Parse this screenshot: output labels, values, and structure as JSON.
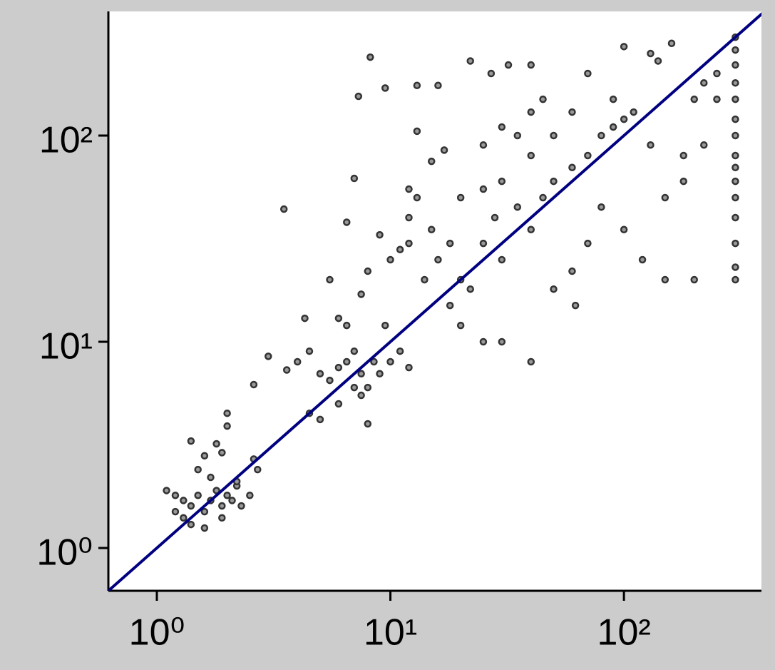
{
  "chart_data": {
    "type": "scatter",
    "xscale": "log",
    "yscale": "log",
    "xlim": [
      0.62,
      388
    ],
    "ylim": [
      0.62,
      400
    ],
    "xticks": [
      {
        "value": 1,
        "label": "10⁰"
      },
      {
        "value": 10,
        "label": "10¹"
      },
      {
        "value": 100,
        "label": "10²"
      }
    ],
    "yticks": [
      {
        "value": 1,
        "label": "10⁰"
      },
      {
        "value": 10,
        "label": "10¹"
      },
      {
        "value": 100,
        "label": "10²"
      }
    ],
    "marker_color": "#333333",
    "line_color": "#000080",
    "line": {
      "x": [
        0.62,
        400
      ],
      "y": [
        0.62,
        400
      ]
    },
    "x": [
      1.2,
      1.3,
      1.4,
      1.5,
      1.6,
      1.7,
      1.8,
      1.9,
      2.0,
      2.1,
      2.2,
      1.3,
      1.5,
      1.6,
      1.4,
      1.8,
      1.9,
      2.0,
      2.0,
      1.1,
      1.2,
      1.4,
      1.6,
      1.9,
      2.3,
      2.5,
      2.6,
      2.7,
      1.7,
      2.2,
      3.5,
      2.6,
      3.0,
      3.6,
      4,
      4.5,
      5,
      5.5,
      6,
      6.5,
      7,
      7.5,
      8,
      8.5,
      9,
      10,
      11,
      12,
      4.5,
      5,
      6,
      7,
      8,
      7.5,
      4.3,
      5.5,
      6,
      6.5,
      7,
      7.3,
      8.2,
      9.5,
      12,
      13,
      13,
      13,
      16,
      22,
      27,
      32,
      40,
      40,
      9.5,
      10,
      12,
      14,
      15,
      16,
      18,
      20,
      22,
      25,
      28,
      30,
      35,
      40,
      45,
      50,
      60,
      70,
      80,
      90,
      100,
      20,
      25,
      30,
      18,
      20,
      25,
      30,
      40,
      50,
      62,
      60,
      70,
      80,
      100,
      120,
      150,
      200,
      150,
      180,
      200,
      220,
      250,
      140,
      100,
      130,
      160,
      250,
      220,
      180,
      130,
      110,
      90,
      70,
      60,
      50,
      45,
      40,
      35,
      30,
      25,
      15,
      17,
      12,
      11,
      9,
      8,
      7.5,
      6.5,
      300,
      300,
      300,
      300,
      300,
      300,
      300,
      300,
      300,
      300,
      300,
      300,
      300,
      300,
      300
    ],
    "y": [
      1.5,
      1.7,
      1.6,
      1.8,
      1.5,
      1.7,
      1.9,
      1.6,
      1.8,
      1.7,
      2.0,
      1.4,
      2.4,
      2.8,
      3.3,
      3.2,
      2.9,
      4.5,
      3.9,
      1.9,
      1.8,
      1.3,
      1.25,
      1.4,
      1.6,
      1.8,
      2.7,
      2.4,
      2.2,
      2.1,
      44,
      6.2,
      8.5,
      7.3,
      8,
      9,
      7,
      6.5,
      7.5,
      8,
      9,
      7,
      6,
      8,
      7,
      8,
      9,
      7.5,
      4.5,
      4.2,
      5,
      6,
      4,
      5.5,
      13,
      20,
      13,
      38,
      62,
      155,
      240,
      170,
      55,
      50,
      105,
      175,
      175,
      230,
      200,
      220,
      220,
      80,
      12,
      25,
      30,
      20,
      35,
      25,
      30,
      20,
      18,
      30,
      40,
      25,
      45,
      35,
      50,
      60,
      70,
      80,
      100,
      110,
      120,
      50,
      55,
      60,
      15,
      12,
      10,
      10,
      8,
      18,
      15,
      22,
      30,
      45,
      35,
      25,
      20,
      20,
      50,
      60,
      150,
      180,
      200,
      230,
      270,
      250,
      280,
      150,
      90,
      80,
      90,
      130,
      150,
      200,
      130,
      100,
      150,
      130,
      100,
      110,
      90,
      75,
      85,
      40,
      28,
      33,
      22,
      17,
      12,
      20,
      23,
      30,
      40,
      50,
      60,
      70,
      80,
      100,
      120,
      150,
      180,
      220,
      260,
      300
    ]
  }
}
